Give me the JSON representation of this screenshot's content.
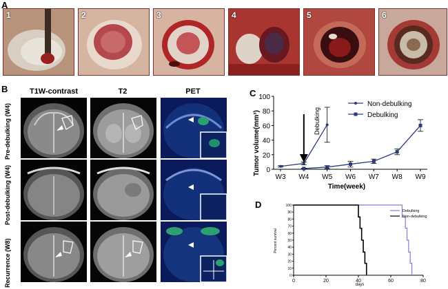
{
  "panels": {
    "a": "A",
    "b": "B",
    "c": "C",
    "d": "D"
  },
  "photos": [
    "1",
    "2",
    "3",
    "4",
    "5",
    "6"
  ],
  "mri": {
    "columns": [
      "T1W-contrast",
      "T2",
      "PET"
    ],
    "rows": [
      "Pre-debulking (W4)",
      "Post-debulking (W4)",
      "Recurrence (W8)"
    ]
  },
  "chart_data": [
    {
      "type": "line",
      "xlabel": "Time(week)",
      "ylabel": "Tumor volume(mm³)",
      "ylim": [
        0,
        100
      ],
      "yticks": [
        0,
        20,
        40,
        60,
        80,
        100
      ],
      "categories": [
        "W3",
        "W4",
        "W5",
        "W6",
        "W7",
        "W8",
        "W9"
      ],
      "annotation": "Debulking",
      "legend_position": "top-right",
      "series": [
        {
          "name": "Non-debulking",
          "color": "#2b3a7a",
          "x": [
            "W3",
            "W4",
            "W5"
          ],
          "values": [
            4,
            8,
            61
          ],
          "errors": [
            1,
            2,
            24
          ]
        },
        {
          "name": "Debulking",
          "color": "#2b3a7a",
          "x": [
            "W4",
            "W5",
            "W6",
            "W7",
            "W8",
            "W9"
          ],
          "values": [
            1,
            3,
            7,
            11,
            24,
            60
          ],
          "errors": [
            0.5,
            2,
            4,
            3,
            4,
            8
          ]
        }
      ]
    },
    {
      "type": "line",
      "xlabel": "days",
      "ylabel": "Percent survival",
      "xlim": [
        0,
        80
      ],
      "ylim": [
        0,
        100
      ],
      "xticks": [
        0,
        20,
        40,
        60,
        80
      ],
      "yticks": [
        0,
        10,
        20,
        30,
        40,
        50,
        60,
        70,
        80,
        90,
        100
      ],
      "legend_position": "top-right",
      "series": [
        {
          "name": "Debulking",
          "color": "#8080d0",
          "steps": [
            [
              0,
              100
            ],
            [
              67,
              100
            ],
            [
              67,
              83
            ],
            [
              69,
              83
            ],
            [
              69,
              67
            ],
            [
              70,
              67
            ],
            [
              70,
              50
            ],
            [
              71,
              50
            ],
            [
              71,
              33
            ],
            [
              72,
              33
            ],
            [
              72,
              17
            ],
            [
              73,
              17
            ],
            [
              73,
              0
            ]
          ]
        },
        {
          "name": "Non-debulking",
          "color": "#000000",
          "steps": [
            [
              0,
              100
            ],
            [
              40,
              100
            ],
            [
              40,
              83
            ],
            [
              41,
              83
            ],
            [
              41,
              67
            ],
            [
              42,
              67
            ],
            [
              42,
              50
            ],
            [
              43,
              50
            ],
            [
              43,
              33
            ],
            [
              44,
              33
            ],
            [
              44,
              17
            ],
            [
              45,
              17
            ],
            [
              45,
              0
            ]
          ]
        }
      ]
    }
  ]
}
